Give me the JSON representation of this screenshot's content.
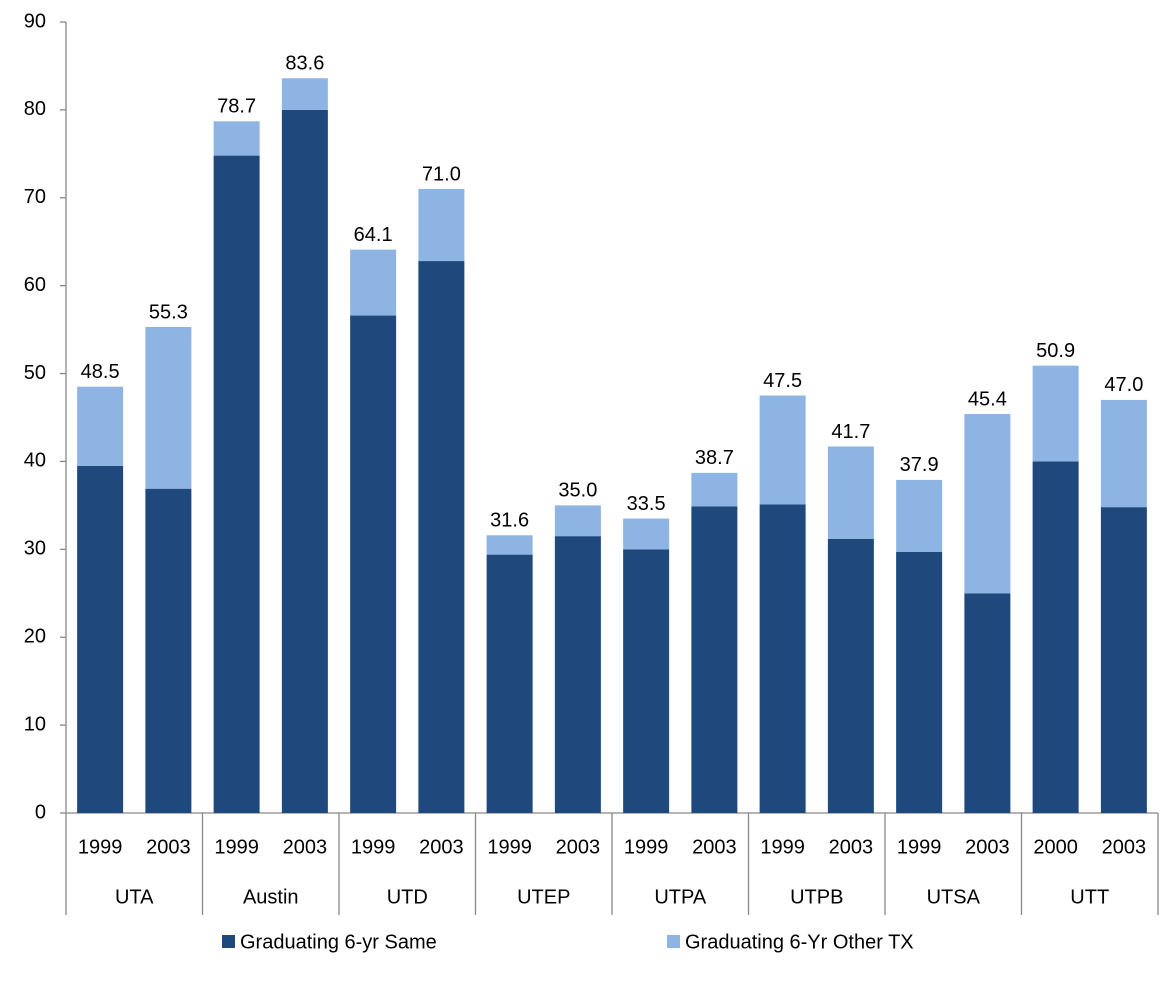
{
  "chart_data": {
    "type": "stacked_bar",
    "categories": [
      "1999",
      "2003",
      "1999",
      "2003",
      "1999",
      "2003",
      "1999",
      "2003",
      "1999",
      "2003",
      "1999",
      "2003",
      "1999",
      "2003",
      "2000",
      "2003"
    ],
    "groups": [
      "UTA",
      "Austin",
      "UTD",
      "UTEP",
      "UTPA",
      "UTPB",
      "UTSA",
      "UTT"
    ],
    "series": [
      {
        "name": "Graduating 6-yr Same",
        "color": "#1f497d",
        "values": [
          39.5,
          36.9,
          74.8,
          80.0,
          56.6,
          62.8,
          29.4,
          31.5,
          30.0,
          34.9,
          35.1,
          31.2,
          29.7,
          25.0,
          40.0,
          34.8
        ]
      },
      {
        "name": "Graduating 6-Yr Other TX",
        "color": "#8eb4e3",
        "values": [
          9.0,
          18.4,
          3.9,
          3.6,
          7.5,
          8.2,
          2.2,
          3.5,
          3.5,
          3.8,
          12.4,
          10.5,
          8.2,
          20.4,
          10.9,
          12.2
        ]
      }
    ],
    "totals": [
      48.5,
      55.3,
      78.7,
      83.6,
      64.1,
      71.0,
      31.6,
      35.0,
      33.5,
      38.7,
      47.5,
      41.7,
      37.9,
      45.4,
      50.9,
      47.0
    ],
    "total_labels": [
      "48.5",
      "55.3",
      "78.7",
      "83.6",
      "64.1",
      "71.0",
      "31.6",
      "35.0",
      "33.5",
      "38.7",
      "47.5",
      "41.7",
      "37.9",
      "45.4",
      "50.9",
      "47.0"
    ],
    "ylim": [
      0,
      90
    ],
    "yticks": [
      0,
      10,
      20,
      30,
      40,
      50,
      60,
      70,
      80,
      90
    ],
    "grid": false,
    "legend": "bottom"
  }
}
